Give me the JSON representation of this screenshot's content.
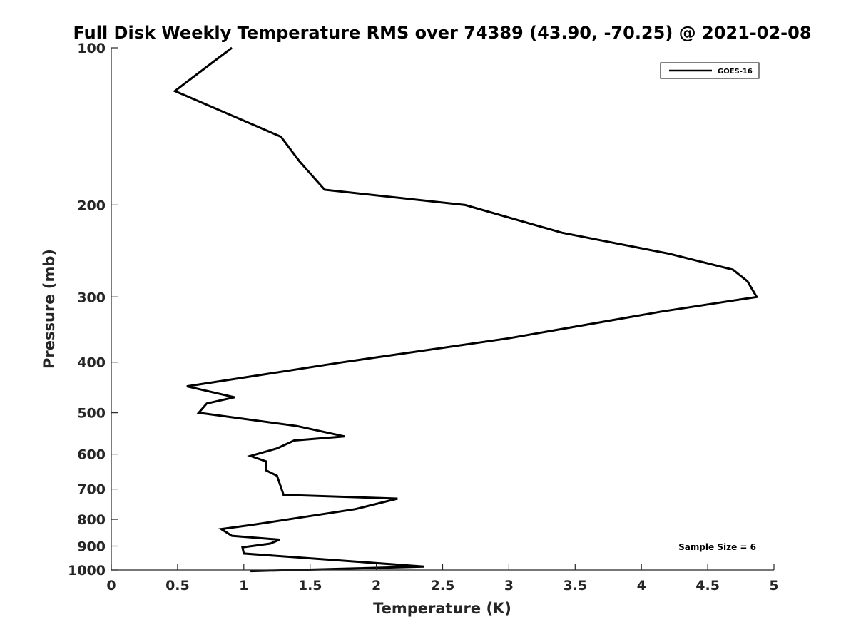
{
  "chart_data": {
    "type": "line",
    "title": "Full Disk Weekly Temperature RMS over 74389 (43.90, -70.25) @ 2021-02-08",
    "xlabel": "Temperature (K)",
    "ylabel": "Pressure (mb)",
    "xlim": [
      0,
      5
    ],
    "ylim": [
      100,
      1000
    ],
    "y_scale": "log",
    "y_reversed": true,
    "xticks": [
      0,
      0.5,
      1,
      1.5,
      2,
      2.5,
      3,
      3.5,
      4,
      4.5,
      5
    ],
    "xtick_labels": [
      "0",
      "0.5",
      "1",
      "1.5",
      "2",
      "2.5",
      "3",
      "3.5",
      "4",
      "4.5",
      "5"
    ],
    "yticks": [
      100,
      200,
      300,
      400,
      500,
      600,
      700,
      800,
      900,
      1000
    ],
    "ytick_labels": [
      "100",
      "200",
      "300",
      "400",
      "500",
      "600",
      "700",
      "800",
      "900",
      "1000"
    ],
    "grid": false,
    "legend_position": "top-right",
    "annotation": "Sample Size = 6",
    "series": [
      {
        "name": "GOES-16",
        "color": "#000000",
        "points": [
          [
            0.91,
            100
          ],
          [
            0.48,
            121
          ],
          [
            1.28,
            148
          ],
          [
            1.42,
            165
          ],
          [
            1.61,
            187
          ],
          [
            2.67,
            200
          ],
          [
            3.4,
            226
          ],
          [
            4.21,
            248
          ],
          [
            4.69,
            266
          ],
          [
            4.8,
            280
          ],
          [
            4.87,
            300
          ],
          [
            4.15,
            320
          ],
          [
            3.0,
            360
          ],
          [
            1.75,
            400
          ],
          [
            1.08,
            425
          ],
          [
            0.57,
            445
          ],
          [
            0.93,
            467
          ],
          [
            0.72,
            480
          ],
          [
            0.66,
            500
          ],
          [
            1.4,
            530
          ],
          [
            1.76,
            555
          ],
          [
            1.38,
            565
          ],
          [
            1.25,
            585
          ],
          [
            1.05,
            605
          ],
          [
            1.17,
            620
          ],
          [
            1.17,
            645
          ],
          [
            1.25,
            660
          ],
          [
            1.3,
            718
          ],
          [
            2.16,
            730
          ],
          [
            1.84,
            765
          ],
          [
            1.06,
            820
          ],
          [
            0.83,
            835
          ],
          [
            0.91,
            860
          ],
          [
            1.27,
            875
          ],
          [
            1.2,
            890
          ],
          [
            0.99,
            905
          ],
          [
            1.0,
            930
          ],
          [
            2.36,
            985
          ],
          [
            1.05,
            1005
          ]
        ]
      }
    ]
  }
}
